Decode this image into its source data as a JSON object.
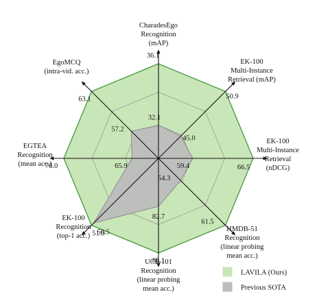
{
  "chart_data": {
    "type": "radar",
    "axes": [
      {
        "label_lines": [
          "CharadesEgo",
          "Recognition",
          "(mAP)"
        ],
        "ours": 36.1,
        "sota": 32.1
      },
      {
        "label_lines": [
          "EK-100",
          "Multi-Instance",
          "Retrieval (mAP)"
        ],
        "ours": 50.9,
        "sota": 45.0
      },
      {
        "label_lines": [
          "EK-100",
          "Multi-Instance",
          "Retrieval",
          "(nDCG)"
        ],
        "ours": 66.5,
        "sota": 59.4
      },
      {
        "label_lines": [
          "HMDB-51",
          "Recognition",
          "(linear probing",
          "mean acc.)"
        ],
        "ours": 61.5,
        "sota": 54.3
      },
      {
        "label_lines": [
          "UCF-101",
          "Recognition",
          "(linear probing",
          "mean acc.)"
        ],
        "ours": 88.1,
        "sota": 82.7
      },
      {
        "label_lines": [
          "EK-100",
          "Recognition",
          "(top-1 acc.)"
        ],
        "ours": 51.0,
        "sota": 50.5
      },
      {
        "label_lines": [
          "EGTEA",
          "Recognition",
          "(mean acc.)"
        ],
        "ours": 76.0,
        "sota": 65.9
      },
      {
        "label_lines": [
          "EgoMCQ",
          "(intra-vid. acc.)"
        ],
        "ours": 63.1,
        "sota": 57.2
      }
    ],
    "series": [
      {
        "name": "LAVILA (Ours)",
        "key": "ours",
        "fill": "#c9e6b8",
        "stroke": "#3f9a3a"
      },
      {
        "name": "Previous SOTA",
        "key": "sota",
        "fill": "#bdbdbd",
        "stroke": "#8a8a8a"
      }
    ],
    "grid": true,
    "legend": "bottom-right"
  }
}
